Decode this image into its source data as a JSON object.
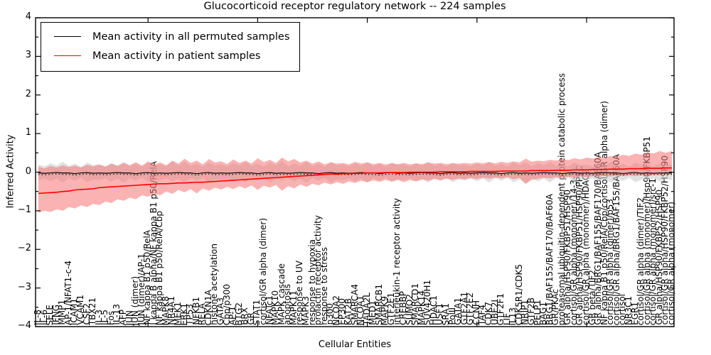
{
  "title": "Glucocorticoid receptor regulatory network -- 224 samples",
  "axes": {
    "y_label": "Inferred Activity",
    "x_label": "Cellular Entities",
    "y_tick_labels": [
      "4",
      "3",
      "2",
      "1",
      "0",
      "−1",
      "−2",
      "−3",
      "−4"
    ],
    "y_tick_values": [
      4,
      3,
      2,
      1,
      0,
      -1,
      -2,
      -3,
      -4
    ]
  },
  "colors": {
    "permuted_line": "#000000",
    "patient_line": "#ff0000",
    "permuted_band": "#c9c9c9",
    "patient_band": "#f87272",
    "frame": "#000000",
    "background": "#ffffff"
  },
  "chart_data": {
    "type": "line",
    "title": "Glucocorticoid receptor regulatory network -- 224 samples",
    "xlabel": "Cellular Entities",
    "ylabel": "Inferred Activity",
    "ylim": [
      -4,
      4
    ],
    "grid": false,
    "legend_position": "upper left",
    "x_tick_indices": [
      18,
      36,
      54,
      72,
      90
    ],
    "categories": [
      "IL-8",
      "IL-6",
      "SELE",
      "IFNG",
      "MMP1",
      "AP-1/NFAT1-c-4",
      "ICAM1",
      "VCAM1",
      "CSF2",
      "TBX21",
      "IL-3",
      "IL-5",
      "Fos",
      "IL-13",
      "AFP",
      "JUN",
      "JUN (dimer)",
      "JUN (dimer)/AP-1",
      "NF kappa B1 p50/RelA",
      "I kappa B alpha/NF kappa B1 p50/RelA",
      "NF kappa B1 p50/RelA/Cbp",
      "MAPK8",
      "NR4A1",
      "MEK1",
      "ERK1",
      "TP53",
      "NFKB1",
      "RELA",
      "CDKN1A",
      "histone acetylation",
      "GATA3",
      "Cbp/p300",
      "AP-1",
      "BTG2",
      "BRX",
      "GR",
      "STAT1",
      "cortisol/GR alpha (dimer)",
      "NFATc1",
      "MAPK10",
      "MAPK cascade",
      "apoptosis",
      "MAPK11",
      "response to UV",
      "MAPK3",
      "response to hypoxia",
      "prolactin receptor activity",
      "response to stress",
      "p300",
      "NCOA2",
      "EP300",
      "KAT2B",
      "SMARCA4",
      "NCOA1",
      "TADA2L",
      "MED1",
      "SMARCB1",
      "MAPK9",
      "GTF2E1",
      "interleukin-1 receptor activity",
      "CREBBP",
      "SUMO2",
      "SMARCD1",
      "MAPK14",
      "SUV420H1",
      "HDAC1",
      "USF1",
      "SRA1",
      "PolII",
      "GATA1",
      "GTF2A1",
      "GTF2E2",
      "CCNH",
      "TAF4",
      "CDK7",
      "UBE2I",
      "GTF2F1",
      "LIF",
      "IL13",
      "CDK5R1/CDK5",
      "NRIP1",
      "GTF2B",
      "PELP1",
      "BAG1",
      "BRG1/BAF155/BAF170/BAF60A",
      "GR/PKAc",
      "proteasomal ubiquitin-dependent protein catabolic process",
      "GR alpha/HSP90/FKBP51/HSP90",
      "cortisol/GR alpha (monomer)/14-3-3",
      "GR alpha/HSP90/FKBP51/HSP90/PP5C",
      "cortisol/GR alpha (monomer)/HDAC2",
      "GR beta/TIF2",
      "GR alpha/BRG1/BAF155/BAF170/BAF60A",
      "NF kappa B1 p50/RelA/Cbp/cortisol/GR alpha (dimer)",
      "cortisol/GR alpha (dimer)/p53",
      "cortisol/GR alpha/BRG1/BAF155/BAF60A",
      "cortisol",
      "NR3C1",
      "EGR1",
      "cortisol/GR alpha (dimer)/TIF2",
      "cortisol/GR alpha (monomer)/Hsp90/FKBP51",
      "cortisol/GR alpha (monomer)/src-1",
      "GR alpha/HSP90/FKBP52/HSP90",
      "cortisol/GR alpha/HSP90/FKBP52/HSP90",
      "cortisol/GR alpha (monomer)"
    ],
    "series": [
      {
        "name": "Mean activity in all permuted samples",
        "color": "#000000",
        "values": [
          -0.02,
          -0.03,
          -0.02,
          -0.01,
          -0.02,
          -0.02,
          -0.04,
          -0.02,
          -0.01,
          -0.03,
          -0.02,
          -0.03,
          -0.02,
          -0.01,
          -0.02,
          -0.02,
          -0.04,
          -0.02,
          -0.01,
          -0.03,
          -0.02,
          -0.03,
          -0.02,
          -0.01,
          -0.02,
          -0.02,
          -0.04,
          -0.02,
          -0.01,
          -0.03,
          -0.02,
          -0.03,
          -0.02,
          -0.01,
          -0.02,
          -0.02,
          -0.04,
          -0.02,
          -0.01,
          -0.03,
          -0.02,
          -0.03,
          -0.02,
          -0.01,
          -0.02,
          -0.02,
          -0.04,
          -0.02,
          -0.01,
          -0.03,
          -0.02,
          -0.03,
          -0.02,
          -0.01,
          -0.02,
          -0.02,
          -0.04,
          -0.02,
          -0.01,
          -0.03,
          -0.02,
          -0.03,
          -0.02,
          -0.01,
          -0.02,
          -0.02,
          -0.04,
          -0.02,
          -0.01,
          -0.03,
          -0.02,
          -0.03,
          -0.02,
          -0.01,
          -0.02,
          -0.02,
          -0.04,
          -0.02,
          -0.01,
          -0.03,
          -0.02,
          -0.03,
          -0.02,
          -0.01,
          -0.02,
          -0.02,
          -0.04,
          -0.02,
          -0.01,
          -0.03,
          -0.02,
          -0.03,
          -0.02,
          -0.01,
          -0.02,
          -0.02,
          -0.04,
          -0.02,
          -0.01,
          -0.03,
          -0.02,
          -0.03,
          -0.02,
          -0.02,
          -0.02
        ],
        "band_upper": [
          0.2,
          0.15,
          0.23,
          0.17,
          0.27,
          0.16,
          0.22,
          0.14,
          0.25,
          0.18,
          0.2,
          0.15,
          0.23,
          0.17,
          0.27,
          0.16,
          0.22,
          0.14,
          0.25,
          0.18,
          0.2,
          0.15,
          0.28,
          0.17,
          0.27,
          0.16,
          0.22,
          0.14,
          0.25,
          0.18,
          0.2,
          0.15,
          0.23,
          0.17,
          0.27,
          0.16,
          0.22,
          0.14,
          0.25,
          0.18,
          0.3,
          0.15,
          0.23,
          0.17,
          0.27,
          0.16,
          0.22,
          0.14,
          0.25,
          0.18,
          0.2,
          0.15,
          0.23,
          0.17,
          0.27,
          0.16,
          0.22,
          0.14,
          0.25,
          0.18,
          0.2,
          0.15,
          0.23,
          0.17,
          0.27,
          0.16,
          0.22,
          0.14,
          0.25,
          0.18,
          0.2,
          0.15,
          0.23,
          0.17,
          0.27,
          0.16,
          0.22,
          0.14,
          0.25,
          0.18,
          0.25,
          0.15,
          0.23,
          0.17,
          0.27,
          0.16,
          0.22,
          0.14,
          0.25,
          0.18,
          0.2,
          0.15,
          0.23,
          0.17,
          0.27,
          0.16,
          0.22,
          0.14,
          0.25,
          0.18,
          0.2,
          0.15,
          0.23,
          0.17,
          0.2
        ],
        "band_lower": [
          -0.21,
          -0.16,
          -0.24,
          -0.17,
          -0.27,
          -0.15,
          -0.22,
          -0.14,
          -0.26,
          -0.19,
          -0.21,
          -0.16,
          -0.24,
          -0.17,
          -0.27,
          -0.15,
          -0.22,
          -0.14,
          -0.26,
          -0.19,
          -0.21,
          -0.16,
          -0.24,
          -0.17,
          -0.27,
          -0.15,
          -0.22,
          -0.14,
          -0.26,
          -0.19,
          -0.21,
          -0.16,
          -0.24,
          -0.17,
          -0.27,
          -0.15,
          -0.22,
          -0.14,
          -0.26,
          -0.19,
          -0.21,
          -0.16,
          -0.24,
          -0.17,
          -0.27,
          -0.15,
          -0.22,
          -0.14,
          -0.26,
          -0.19,
          -0.21,
          -0.16,
          -0.24,
          -0.17,
          -0.27,
          -0.15,
          -0.22,
          -0.14,
          -0.26,
          -0.19,
          -0.21,
          -0.16,
          -0.24,
          -0.17,
          -0.27,
          -0.15,
          -0.22,
          -0.14,
          -0.26,
          -0.19,
          -0.21,
          -0.16,
          -0.24,
          -0.17,
          -0.27,
          -0.15,
          -0.22,
          -0.14,
          -0.26,
          -0.19,
          -0.3,
          -0.16,
          -0.24,
          -0.17,
          -0.27,
          -0.15,
          -0.22,
          -0.14,
          -0.26,
          -0.19,
          -0.21,
          -0.16,
          -0.24,
          -0.17,
          -0.27,
          -0.15,
          -0.22,
          -0.14,
          -0.26,
          -0.19,
          -0.21,
          -0.16,
          -0.24,
          -0.17,
          -0.21
        ],
        "band_color": "#c9c9c9"
      },
      {
        "name": "Mean activity in patient samples",
        "color": "#ff0000",
        "values": [
          -0.55,
          -0.54,
          -0.53,
          -0.52,
          -0.5,
          -0.49,
          -0.46,
          -0.45,
          -0.44,
          -0.43,
          -0.4,
          -0.39,
          -0.38,
          -0.37,
          -0.36,
          -0.35,
          -0.34,
          -0.33,
          -0.32,
          -0.31,
          -0.3,
          -0.3,
          -0.29,
          -0.28,
          -0.28,
          -0.27,
          -0.26,
          -0.26,
          -0.25,
          -0.24,
          -0.23,
          -0.22,
          -0.21,
          -0.2,
          -0.19,
          -0.18,
          -0.17,
          -0.16,
          -0.15,
          -0.14,
          -0.13,
          -0.12,
          -0.11,
          -0.1,
          -0.09,
          -0.08,
          -0.07,
          -0.06,
          -0.05,
          -0.05,
          -0.04,
          -0.04,
          -0.03,
          -0.03,
          -0.02,
          -0.02,
          -0.02,
          -0.01,
          -0.01,
          -0.01,
          -0.01,
          0.0,
          0.0,
          0.0,
          0.0,
          0.0,
          0.01,
          0.01,
          0.01,
          0.01,
          0.01,
          0.02,
          0.02,
          0.02,
          0.02,
          0.02,
          0.03,
          0.03,
          0.03,
          0.03,
          0.03,
          0.04,
          0.04,
          0.04,
          0.04,
          0.05,
          0.05,
          0.05,
          0.06,
          0.06,
          0.06,
          0.07,
          0.07,
          0.07,
          0.08,
          0.08,
          0.08,
          0.09,
          0.09,
          0.09,
          0.1,
          0.1,
          0.1,
          0.11,
          0.11
        ],
        "band_upper": [
          0.14,
          0.1,
          0.16,
          0.12,
          0.18,
          0.13,
          0.17,
          0.12,
          0.19,
          0.15,
          0.2,
          0.14,
          0.22,
          0.16,
          0.24,
          0.18,
          0.26,
          0.17,
          0.28,
          0.2,
          0.25,
          0.18,
          0.3,
          0.22,
          0.35,
          0.24,
          0.3,
          0.2,
          0.34,
          0.25,
          0.28,
          0.21,
          0.33,
          0.24,
          0.3,
          0.22,
          0.36,
          0.26,
          0.32,
          0.24,
          0.38,
          0.28,
          0.34,
          0.25,
          0.3,
          0.22,
          0.28,
          0.2,
          0.26,
          0.22,
          0.24,
          0.2,
          0.27,
          0.22,
          0.25,
          0.21,
          0.24,
          0.2,
          0.23,
          0.21,
          0.24,
          0.2,
          0.23,
          0.21,
          0.25,
          0.22,
          0.24,
          0.21,
          0.23,
          0.22,
          0.24,
          0.22,
          0.25,
          0.23,
          0.26,
          0.23,
          0.27,
          0.24,
          0.28,
          0.25,
          0.35,
          0.27,
          0.3,
          0.28,
          0.32,
          0.3,
          0.34,
          0.31,
          0.36,
          0.33,
          0.38,
          0.35,
          0.4,
          0.37,
          0.42,
          0.4,
          0.45,
          0.42,
          0.48,
          0.45,
          0.52,
          0.48,
          0.55,
          0.5,
          0.55
        ],
        "band_lower": [
          -1.05,
          -1.0,
          -1.03,
          -0.96,
          -1.0,
          -0.9,
          -0.94,
          -0.86,
          -0.9,
          -0.82,
          -0.85,
          -0.76,
          -0.8,
          -0.7,
          -0.74,
          -0.66,
          -0.7,
          -0.6,
          -0.64,
          -0.56,
          -0.6,
          -0.5,
          -0.56,
          -0.46,
          -0.52,
          -0.44,
          -0.55,
          -0.42,
          -0.48,
          -0.4,
          -0.45,
          -0.38,
          -0.44,
          -0.36,
          -0.42,
          -0.34,
          -0.46,
          -0.35,
          -0.4,
          -0.33,
          -0.48,
          -0.36,
          -0.42,
          -0.32,
          -0.38,
          -0.3,
          -0.34,
          -0.27,
          -0.32,
          -0.26,
          -0.3,
          -0.24,
          -0.28,
          -0.22,
          -0.26,
          -0.21,
          -0.25,
          -0.2,
          -0.24,
          -0.2,
          -0.26,
          -0.2,
          -0.24,
          -0.19,
          -0.22,
          -0.18,
          -0.21,
          -0.17,
          -0.2,
          -0.16,
          -0.19,
          -0.15,
          -0.18,
          -0.14,
          -0.17,
          -0.14,
          -0.16,
          -0.13,
          -0.18,
          -0.15,
          -0.3,
          -0.2,
          -0.17,
          -0.14,
          -0.16,
          -0.13,
          -0.15,
          -0.12,
          -0.14,
          -0.11,
          -0.13,
          -0.1,
          -0.12,
          -0.09,
          -0.11,
          -0.09,
          -0.1,
          -0.08,
          -0.1,
          -0.08,
          -0.09,
          -0.07,
          -0.08,
          -0.06,
          -0.07
        ],
        "band_color": "#f87272"
      }
    ]
  }
}
